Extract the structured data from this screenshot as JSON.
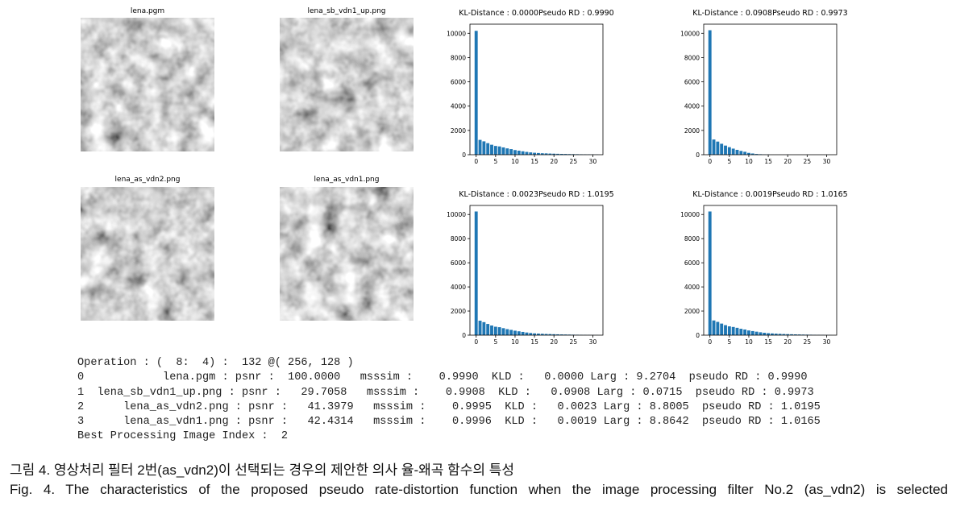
{
  "images": [
    {
      "title": "lena.pgm"
    },
    {
      "title": "lena_sb_vdn1_up.png"
    },
    {
      "title": "lena_as_vdn2.png"
    },
    {
      "title": "lena_as_vdn1.png"
    }
  ],
  "chart_data": [
    {
      "type": "bar",
      "title": "KL-Distance : 0.0000Pseudo RD : 0.9990",
      "color": "#1f77b4",
      "x": [
        0,
        1,
        2,
        3,
        4,
        5,
        6,
        7,
        8,
        9,
        10,
        11,
        12,
        13,
        14,
        15,
        16,
        17,
        18,
        19,
        20,
        21,
        22,
        23,
        24,
        25,
        26,
        27,
        28,
        29,
        30,
        31
      ],
      "values": [
        10200,
        1220,
        1100,
        950,
        820,
        720,
        680,
        600,
        520,
        460,
        380,
        330,
        280,
        230,
        190,
        160,
        140,
        120,
        110,
        95,
        85,
        75,
        65,
        60,
        50,
        45,
        40,
        35,
        30,
        25,
        20,
        15
      ],
      "xlim": [
        -1.6,
        32.6
      ],
      "ylim": [
        0,
        10750
      ],
      "xticks": [
        0,
        5,
        10,
        15,
        20,
        25,
        30
      ],
      "yticks": [
        0,
        2000,
        4000,
        6000,
        8000,
        10000
      ]
    },
    {
      "type": "bar",
      "title": "KL-Distance : 0.0908Pseudo RD : 0.9973",
      "color": "#1f77b4",
      "x": [
        0,
        1,
        2,
        3,
        4,
        5,
        6,
        7,
        8,
        9,
        10,
        11,
        12,
        13,
        14,
        15,
        16,
        17,
        18,
        19,
        20,
        21,
        22,
        23,
        24,
        25,
        26,
        27,
        28,
        29,
        30,
        31
      ],
      "values": [
        10250,
        1250,
        1080,
        900,
        750,
        620,
        500,
        400,
        310,
        240,
        150,
        100,
        60,
        40,
        20,
        10,
        5,
        3,
        2,
        1,
        1,
        0,
        0,
        0,
        0,
        0,
        0,
        0,
        0,
        0,
        0,
        0
      ],
      "xlim": [
        -1.6,
        32.6
      ],
      "ylim": [
        0,
        10750
      ],
      "xticks": [
        0,
        5,
        10,
        15,
        20,
        25,
        30
      ],
      "yticks": [
        0,
        2000,
        4000,
        6000,
        8000,
        10000
      ]
    },
    {
      "type": "bar",
      "title": "KL-Distance : 0.0023Pseudo RD : 1.0195",
      "color": "#1f77b4",
      "x": [
        0,
        1,
        2,
        3,
        4,
        5,
        6,
        7,
        8,
        9,
        10,
        11,
        12,
        13,
        14,
        15,
        16,
        17,
        18,
        19,
        20,
        21,
        22,
        23,
        24,
        25,
        26,
        27,
        28,
        29,
        30,
        31
      ],
      "values": [
        10250,
        1200,
        1080,
        930,
        800,
        700,
        660,
        580,
        500,
        440,
        370,
        320,
        270,
        220,
        180,
        150,
        130,
        115,
        100,
        90,
        80,
        70,
        62,
        55,
        48,
        42,
        36,
        30,
        25,
        20,
        15,
        10
      ],
      "xlim": [
        -1.6,
        32.6
      ],
      "ylim": [
        0,
        10750
      ],
      "xticks": [
        0,
        5,
        10,
        15,
        20,
        25,
        30
      ],
      "yticks": [
        0,
        2000,
        4000,
        6000,
        8000,
        10000
      ]
    },
    {
      "type": "bar",
      "title": "KL-Distance : 0.0019Pseudo RD : 1.0165",
      "color": "#1f77b4",
      "x": [
        0,
        1,
        2,
        3,
        4,
        5,
        6,
        7,
        8,
        9,
        10,
        11,
        12,
        13,
        14,
        15,
        16,
        17,
        18,
        19,
        20,
        21,
        22,
        23,
        24,
        25,
        26,
        27,
        28,
        29,
        30,
        31
      ],
      "values": [
        10250,
        1220,
        1100,
        960,
        830,
        730,
        680,
        610,
        530,
        470,
        390,
        340,
        290,
        240,
        200,
        165,
        145,
        125,
        110,
        95,
        85,
        75,
        66,
        58,
        50,
        44,
        38,
        32,
        27,
        22,
        17,
        12
      ],
      "xlim": [
        -1.6,
        32.6
      ],
      "ylim": [
        0,
        10750
      ],
      "xticks": [
        0,
        5,
        10,
        15,
        20,
        25,
        30
      ],
      "yticks": [
        0,
        2000,
        4000,
        6000,
        8000,
        10000
      ]
    }
  ],
  "console": {
    "lines": [
      "Operation : (  8:  4) :  132 @( 256, 128 )",
      "0            lena.pgm : psnr :  100.0000   msssim :    0.9990  KLD :   0.0000 Larg : 9.2704  pseudo RD : 0.9990",
      "1  lena_sb_vdn1_up.png : psnr :   29.7058   msssim :    0.9908  KLD :   0.0908 Larg : 0.0715  pseudo RD : 0.9973",
      "2      lena_as_vdn2.png : psnr :   41.3979   msssim :    0.9995  KLD :   0.0023 Larg : 8.8005  pseudo RD : 1.0195",
      "3      lena_as_vdn1.png : psnr :   42.4314   msssim :    0.9996  KLD :   0.0019 Larg : 8.8642  pseudo RD : 1.0165",
      "Best Processing Image Index :  2"
    ]
  },
  "caption": {
    "korean": "그림 4. 영상처리 필터 2번(as_vdn2)이 선택되는 경우의 제안한 의사 율-왜곡 함수의 특성",
    "english": "Fig. 4. The characteristics of the proposed pseudo rate-distortion function when the image processing filter No.2 (as_vdn2) is selected"
  }
}
